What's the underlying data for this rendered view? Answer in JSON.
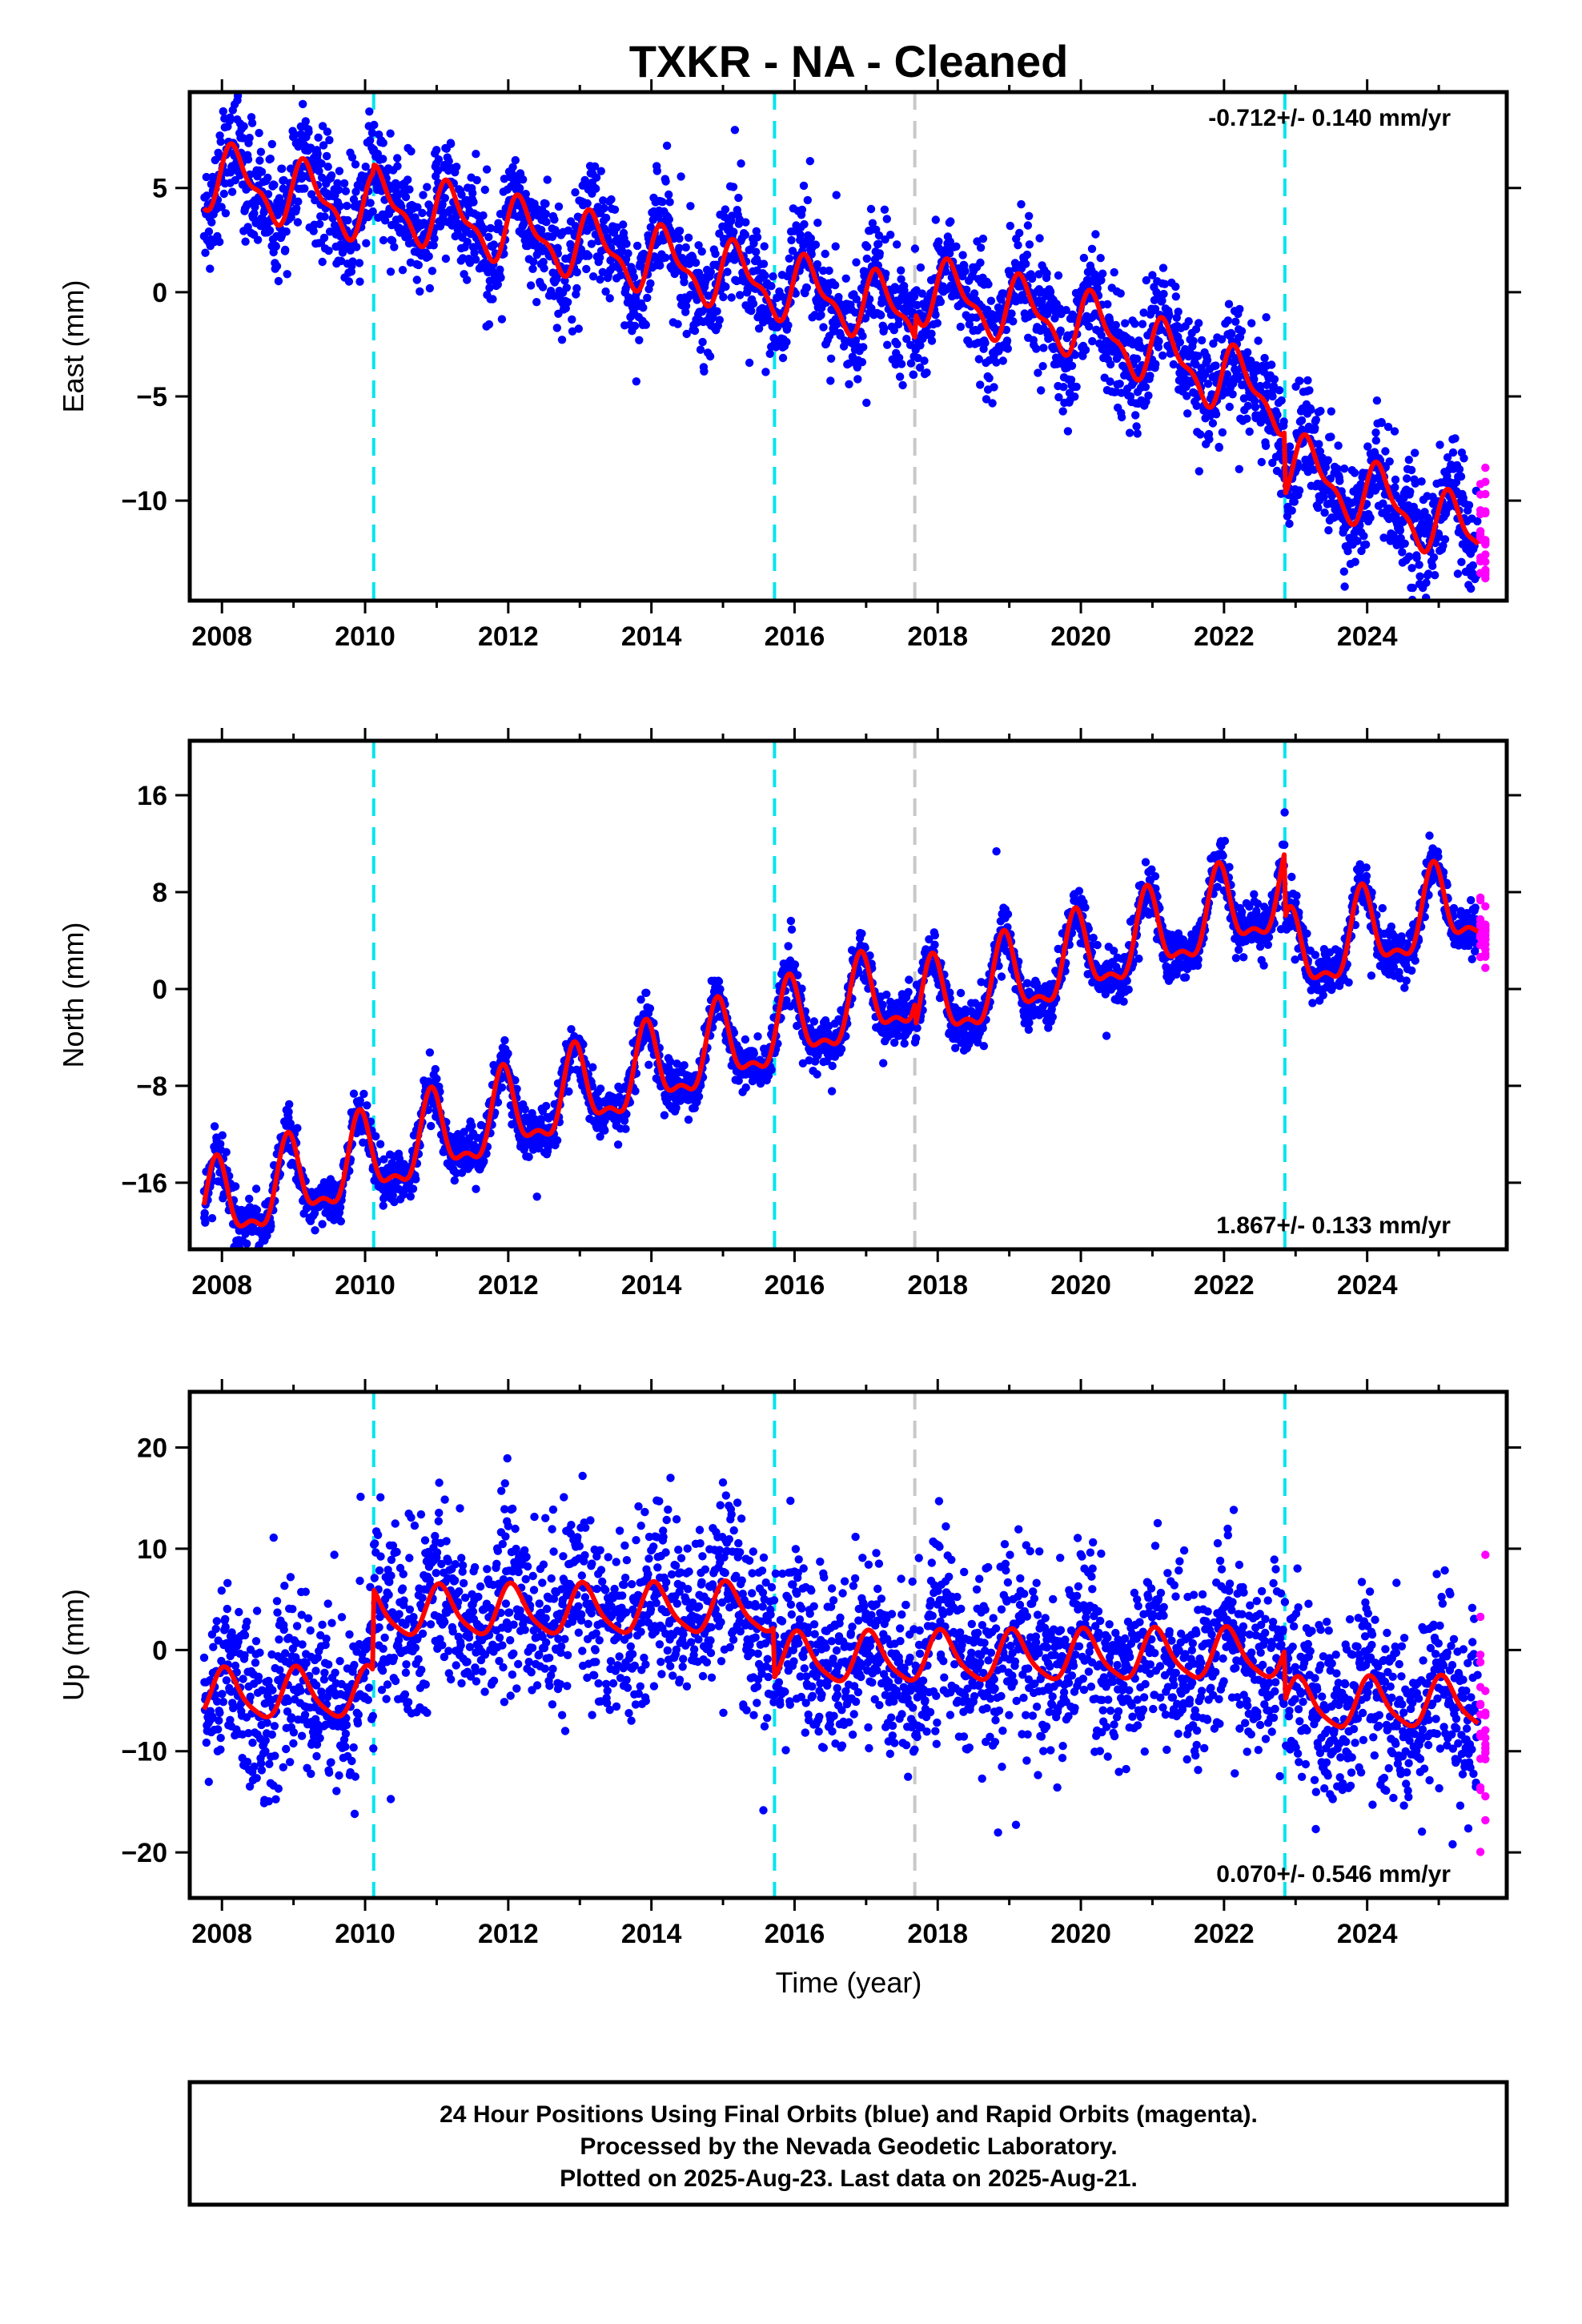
{
  "chart_data": {
    "title": "TXKR  - NA - Cleaned",
    "type": "scatter",
    "x_axis": {
      "label": "Time (year)",
      "range": [
        2007.55,
        2025.95
      ],
      "ticks": [
        "2008",
        "2010",
        "2012",
        "2014",
        "2016",
        "2018",
        "2020",
        "2022",
        "2024"
      ],
      "tick_values": [
        2008,
        2010,
        2012,
        2014,
        2016,
        2018,
        2020,
        2022,
        2024
      ]
    },
    "series_colors": {
      "final": "#0000ff",
      "rapid": "#ff00ff",
      "model": "#ff0000"
    },
    "offsets": [
      {
        "year": 2010.12,
        "color": "#00e5ee"
      },
      {
        "year": 2015.72,
        "color": "#00e5ee"
      },
      {
        "year": 2017.68,
        "color": "#c8c8c8"
      },
      {
        "year": 2022.85,
        "color": "#00e5ee"
      }
    ],
    "data_range": {
      "start": 2007.75,
      "end": 2025.55,
      "rapid_start": 2025.56,
      "rapid_end": 2025.64
    },
    "panels": [
      {
        "name": "east",
        "ylabel": "East (mm)",
        "ylim": [
          -14.8,
          9.6
        ],
        "ticks": [
          "5",
          "0",
          "−5",
          "−10"
        ],
        "tick_values": [
          5,
          0,
          -5,
          -10
        ],
        "rate_label": "-0.712+/- 0.140 mm/yr",
        "rate_position": "top-right",
        "model": {
          "start_value": 5.6,
          "rate": -0.712,
          "annual_amp": 1.4,
          "annual_phase": 0.3,
          "semiannual_amp": 0.6,
          "noise": 1.3,
          "steps": [
            {
              "year": 2010.12,
              "size": 0.4
            },
            {
              "year": 2017.68,
              "size": 1.2
            },
            {
              "year": 2022.85,
              "size": -3.0
            }
          ],
          "post_2020_extra_slope": -0.6
        }
      },
      {
        "name": "north",
        "ylabel": "North (mm)",
        "ylim": [
          -21.5,
          20.5
        ],
        "ticks": [
          "16",
          "8",
          "0",
          "−8",
          "−16"
        ],
        "tick_values": [
          16,
          8,
          0,
          -8,
          -16
        ],
        "rate_label": "1.867+/- 0.133 mm/yr",
        "rate_position": "bottom-right",
        "model": {
          "start_value": -18.5,
          "rate": 1.867,
          "annual_amp": 3.2,
          "annual_phase": 2.0,
          "semiannual_amp": 1.3,
          "noise": 1.0,
          "steps": [
            {
              "year": 2017.68,
              "size": -2.0
            },
            {
              "year": 2022.85,
              "size": -5.5
            }
          ],
          "post_2020_extra_slope": 0
        }
      },
      {
        "name": "up",
        "ylabel": "Up (mm)",
        "ylim": [
          -24.5,
          25.5
        ],
        "ticks": [
          "20",
          "10",
          "0",
          "−10",
          "−20"
        ],
        "tick_values": [
          20,
          10,
          0,
          -10,
          -20
        ],
        "rate_label": "0.070+/- 0.546 mm/yr",
        "rate_position": "bottom-right",
        "model": {
          "start_value": -4.5,
          "rate": 0.07,
          "annual_amp": 2.4,
          "annual_phase": 1.2,
          "semiannual_amp": 0.5,
          "noise": 4.2,
          "steps": [
            {
              "year": 2010.12,
              "size": 8.0
            },
            {
              "year": 2015.72,
              "size": -5.0
            },
            {
              "year": 2022.85,
              "size": -5.0
            }
          ],
          "post_2020_extra_slope": 0
        }
      }
    ],
    "footer": {
      "lines": [
        "24 Hour Positions Using Final Orbits (blue) and Rapid Orbits (magenta).",
        "Processed by the Nevada Geodetic Laboratory.",
        "Plotted on 2025-Aug-23. Last data on 2025-Aug-21."
      ]
    }
  }
}
